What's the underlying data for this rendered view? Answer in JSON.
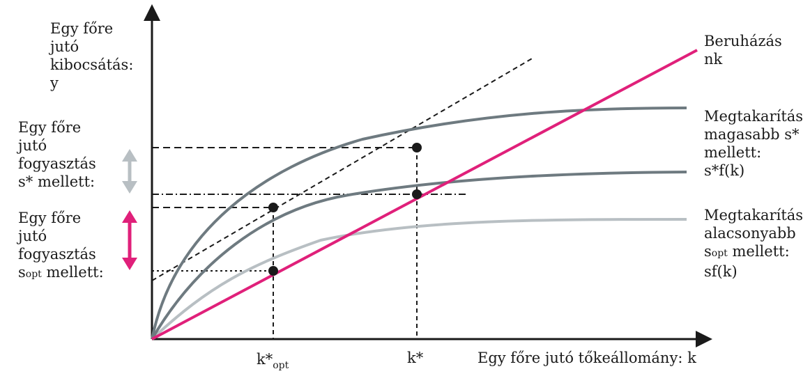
{
  "labels": {
    "y_axis": [
      "Egy főre",
      "jutó",
      "kibocsátás:",
      "y"
    ],
    "consumption_high": [
      "Egy főre",
      "jutó",
      "fogyasztás",
      "s* mellett:"
    ],
    "consumption_opt": [
      "Egy főre",
      "jutó",
      "fogyasztás"
    ],
    "consumption_opt_last": {
      "main": "s",
      "sub": "opt",
      "rest": " mellett:"
    },
    "investment": [
      "Beruházás",
      "nk"
    ],
    "saving_high": [
      "Megtakarítás",
      "magasabb s*",
      "mellett:",
      "s*f(k)"
    ],
    "saving_low": [
      "Megtakarítás",
      "alacsonyabb"
    ],
    "saving_low_line3": {
      "main": "s",
      "sub": "opt",
      "rest": " mellett:"
    },
    "saving_low_line4": "sf(k)",
    "x_axis": "Egy főre jutó tőkeállomány: k",
    "tick_kopt": {
      "main": "k*",
      "sub": "opt"
    },
    "tick_kstar": "k*"
  },
  "colors": {
    "investment_line": "#e0207a",
    "curve_high": "#6e7a80",
    "curve_mid": "#6e7a80",
    "curve_low": "#b8bfc3",
    "arrow_grey": "#b8bfc3",
    "arrow_pink": "#e0207a",
    "axis": "#1a1a1a"
  }
}
